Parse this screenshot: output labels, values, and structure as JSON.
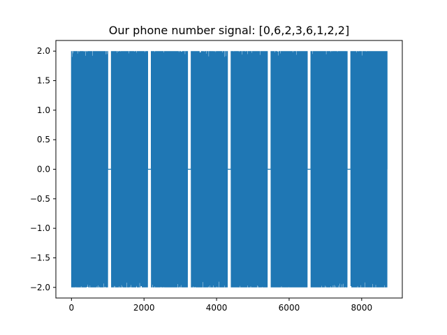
{
  "chart_data": {
    "type": "line",
    "title": "Our phone number signal: [0,6,2,3,6,1,2,2]",
    "xlabel": "",
    "ylabel": "",
    "xlim": [
      -430,
      9120
    ],
    "ylim": [
      -2.18,
      2.18
    ],
    "grid": false,
    "legend": "none",
    "x_ticks": [
      0,
      2000,
      4000,
      6000,
      8000
    ],
    "x_tick_labels": [
      "0",
      "2000",
      "4000",
      "6000",
      "8000"
    ],
    "y_ticks": [
      -2.0,
      -1.5,
      -1.0,
      -0.5,
      0.0,
      0.5,
      1.0,
      1.5,
      2.0
    ],
    "y_tick_labels": [
      "−2.0",
      "−1.5",
      "−1.0",
      "−0.5",
      "0.0",
      "0.5",
      "1.0",
      "1.5",
      "2.0"
    ],
    "series": [
      {
        "color": "#1f77b4",
        "description_of_segments": [
          {
            "digit": 0,
            "x_start": 0,
            "x_end": 1000,
            "min": -2.0,
            "max": 2.0
          },
          {
            "digit": 6,
            "x_start": 1100,
            "x_end": 2100,
            "min": -2.0,
            "max": 2.0
          },
          {
            "digit": 2,
            "x_start": 2200,
            "x_end": 3200,
            "min": -2.0,
            "max": 2.0
          },
          {
            "digit": 3,
            "x_start": 3300,
            "x_end": 4300,
            "min": -2.0,
            "max": 2.0
          },
          {
            "digit": 6,
            "x_start": 4400,
            "x_end": 5400,
            "min": -2.0,
            "max": 2.0
          },
          {
            "digit": 1,
            "x_start": 5500,
            "x_end": 6500,
            "min": -2.0,
            "max": 2.0
          },
          {
            "digit": 2,
            "x_start": 6600,
            "x_end": 7600,
            "min": -2.0,
            "max": 2.0
          },
          {
            "digit": 2,
            "x_start": 7700,
            "x_end": 8700,
            "min": -2.0,
            "max": 2.0
          }
        ],
        "gap_value": 0.0,
        "x_range": [
          0,
          8700
        ]
      }
    ]
  }
}
